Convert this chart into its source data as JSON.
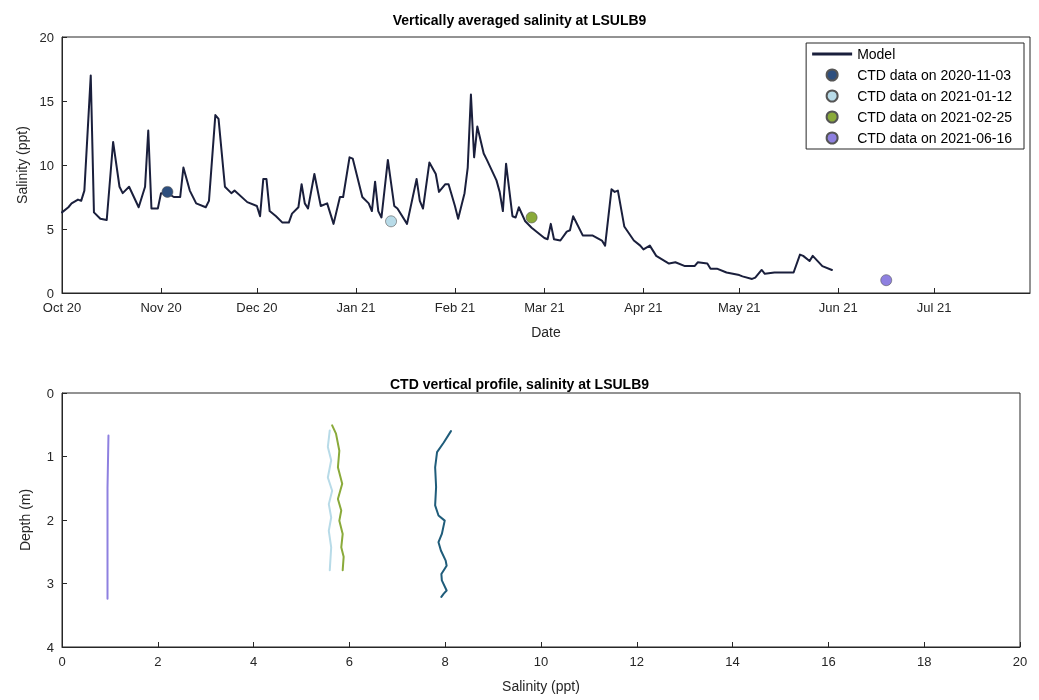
{
  "chart_data": [
    {
      "type": "line",
      "title": "Vertically averaged salinity at LSULB9",
      "xlabel": "Date",
      "ylabel": "Salinity (ppt)",
      "legend": "top right",
      "xlim": [
        "2020-10-01",
        "2021-07-31"
      ],
      "xticks": [
        {
          "value": "2020-10-01",
          "label": "Oct 20"
        },
        {
          "value": "2020-11-01",
          "label": "Nov 20"
        },
        {
          "value": "2020-12-01",
          "label": "Dec 20"
        },
        {
          "value": "2021-01-01",
          "label": "Jan 21"
        },
        {
          "value": "2021-02-01",
          "label": "Feb 21"
        },
        {
          "value": "2021-03-01",
          "label": "Mar 21"
        },
        {
          "value": "2021-04-01",
          "label": "Apr 21"
        },
        {
          "value": "2021-05-01",
          "label": "May 21"
        },
        {
          "value": "2021-06-01",
          "label": "Jun 21"
        },
        {
          "value": "2021-07-01",
          "label": "Jul 21"
        }
      ],
      "ylim": [
        0,
        20
      ],
      "yticks": [
        0,
        5,
        10,
        15,
        20
      ],
      "series": [
        {
          "name": "Model",
          "marker": "none",
          "color": "#1a1f3c",
          "x": [
            "2020-10-01",
            "2020-10-03",
            "2020-10-04",
            "2020-10-06",
            "2020-10-07",
            "2020-10-08",
            "2020-10-10",
            "2020-10-11",
            "2020-10-13",
            "2020-10-15",
            "2020-10-17",
            "2020-10-19",
            "2020-10-20",
            "2020-10-22",
            "2020-10-25",
            "2020-10-27",
            "2020-10-28",
            "2020-10-29",
            "2020-10-31",
            "2020-11-01",
            "2020-11-03",
            "2020-11-05",
            "2020-11-07",
            "2020-11-08",
            "2020-11-10",
            "2020-11-12",
            "2020-11-15",
            "2020-11-16",
            "2020-11-18",
            "2020-11-19",
            "2020-11-21",
            "2020-11-23",
            "2020-11-24",
            "2020-11-28",
            "2020-12-01",
            "2020-12-02",
            "2020-12-03",
            "2020-12-04",
            "2020-12-05",
            "2020-12-07",
            "2020-12-09",
            "2020-12-11",
            "2020-12-12",
            "2020-12-14",
            "2020-12-15",
            "2020-12-16",
            "2020-12-17",
            "2020-12-19",
            "2020-12-21",
            "2020-12-23",
            "2020-12-25",
            "2020-12-27",
            "2020-12-28",
            "2020-12-30",
            "2020-12-31",
            "2021-01-03",
            "2021-01-05",
            "2021-01-06",
            "2021-01-07",
            "2021-01-08",
            "2021-01-09",
            "2021-01-11",
            "2021-01-13",
            "2021-01-14",
            "2021-01-17",
            "2021-01-20",
            "2021-01-21",
            "2021-01-22",
            "2021-01-24",
            "2021-01-26",
            "2021-01-27",
            "2021-01-29",
            "2021-01-30",
            "2021-02-01",
            "2021-02-02",
            "2021-02-04",
            "2021-02-05",
            "2021-02-06",
            "2021-02-07",
            "2021-02-08",
            "2021-02-10",
            "2021-02-11",
            "2021-02-14",
            "2021-02-15",
            "2021-02-16",
            "2021-02-17",
            "2021-02-19",
            "2021-02-20",
            "2021-02-21",
            "2021-02-23",
            "2021-02-25",
            "2021-03-01",
            "2021-03-02",
            "2021-03-03",
            "2021-03-04",
            "2021-03-06",
            "2021-03-08",
            "2021-03-09",
            "2021-03-10",
            "2021-03-13",
            "2021-03-16",
            "2021-03-19",
            "2021-03-20",
            "2021-03-22",
            "2021-03-23",
            "2021-03-24",
            "2021-03-26",
            "2021-03-29",
            "2021-03-31",
            "2021-04-01",
            "2021-04-03",
            "2021-04-05",
            "2021-04-09",
            "2021-04-11",
            "2021-04-14",
            "2021-04-17",
            "2021-04-18",
            "2021-04-21",
            "2021-04-22",
            "2021-04-24",
            "2021-04-27",
            "2021-05-01",
            "2021-05-02",
            "2021-05-05",
            "2021-05-06",
            "2021-05-08",
            "2021-05-09",
            "2021-05-12",
            "2021-05-15",
            "2021-05-18",
            "2021-05-20",
            "2021-05-21",
            "2021-05-23",
            "2021-05-24",
            "2021-05-27",
            "2021-05-30"
          ],
          "values": [
            6.3,
            6.7,
            7.0,
            7.3,
            7.2,
            8.0,
            17.0,
            6.3,
            5.8,
            5.7,
            11.8,
            8.3,
            7.8,
            8.3,
            6.7,
            8.3,
            12.7,
            6.6,
            6.6,
            7.8,
            7.8,
            7.5,
            7.5,
            9.8,
            8.0,
            7.0,
            6.7,
            7.2,
            13.9,
            13.6,
            8.3,
            7.8,
            8.0,
            7.1,
            6.8,
            6.0,
            8.9,
            8.9,
            6.4,
            6.0,
            5.5,
            5.5,
            6.2,
            6.7,
            8.5,
            7.0,
            6.6,
            9.3,
            6.8,
            7.0,
            5.4,
            7.5,
            7.5,
            10.6,
            10.5,
            7.5,
            7.0,
            6.4,
            8.7,
            6.4,
            5.9,
            10.4,
            6.8,
            6.6,
            5.4,
            8.9,
            7.2,
            6.6,
            10.2,
            9.3,
            7.9,
            8.5,
            8.5,
            6.8,
            5.8,
            7.8,
            9.8,
            15.5,
            10.6,
            13.0,
            10.9,
            10.4,
            8.8,
            7.9,
            6.4,
            10.1,
            6.0,
            5.9,
            6.7,
            5.6,
            5.1,
            4.3,
            4.2,
            5.4,
            4.2,
            4.1,
            4.8,
            4.9,
            6.0,
            4.5,
            4.5,
            4.1,
            3.7,
            8.1,
            7.9,
            8.0,
            5.2,
            4.1,
            3.7,
            3.4,
            3.7,
            2.9,
            2.3,
            2.4,
            2.1,
            2.1,
            2.4,
            2.3,
            1.9,
            1.9,
            1.6,
            1.4,
            1.3,
            1.1,
            1.2,
            1.8,
            1.5,
            1.6,
            1.6,
            1.6,
            3.0,
            2.9,
            2.5,
            2.9,
            2.1,
            1.8
          ]
        },
        {
          "name": "CTD data on 2020-11-03",
          "type": "scatter",
          "marker": "circle",
          "color": "#2e4f7e",
          "x": [
            "2020-11-03"
          ],
          "values": [
            7.9
          ]
        },
        {
          "name": "CTD data on 2021-01-12",
          "type": "scatter",
          "marker": "circle",
          "color": "#b8dbe8",
          "x": [
            "2021-01-12"
          ],
          "values": [
            5.6
          ]
        },
        {
          "name": "CTD data on 2021-02-25",
          "type": "scatter",
          "marker": "circle",
          "color": "#8aaa3a",
          "x": [
            "2021-02-25"
          ],
          "values": [
            5.9
          ]
        },
        {
          "name": "CTD data on 2021-06-16",
          "type": "scatter",
          "marker": "circle",
          "color": "#8e80e0",
          "x": [
            "2021-06-16"
          ],
          "values": [
            1.0
          ]
        }
      ]
    },
    {
      "type": "line",
      "title": "CTD vertical profile, salinity at LSULB9",
      "xlabel": "Salinity (ppt)",
      "ylabel": "Depth (m)",
      "xlim": [
        0,
        20
      ],
      "xticks": [
        0,
        2,
        4,
        6,
        8,
        10,
        12,
        14,
        16,
        18,
        20
      ],
      "ylim": [
        4,
        0
      ],
      "yticks": [
        0,
        1,
        2,
        3,
        4
      ],
      "series": [
        {
          "color": "#1f5c7a",
          "marker": "none",
          "x": [
            8.12,
            7.97,
            7.83,
            7.79,
            7.81,
            7.79,
            7.86,
            7.99,
            7.93,
            7.86,
            7.91,
            8.01,
            8.03,
            7.92,
            7.93,
            8.03,
            7.97,
            7.92
          ],
          "values": [
            0.6,
            0.78,
            0.93,
            1.17,
            1.48,
            1.77,
            1.93,
            2.01,
            2.22,
            2.35,
            2.48,
            2.64,
            2.72,
            2.85,
            2.95,
            3.11,
            3.16,
            3.21
          ]
        },
        {
          "color": "#b8dbe8",
          "marker": "none",
          "x": [
            5.59,
            5.55,
            5.62,
            5.55,
            5.64,
            5.57,
            5.62,
            5.57,
            5.62,
            5.59
          ],
          "values": [
            0.59,
            0.85,
            1.06,
            1.33,
            1.54,
            1.75,
            1.96,
            2.17,
            2.43,
            2.79
          ]
        },
        {
          "color": "#8aaa3a",
          "marker": "none",
          "x": [
            5.64,
            5.72,
            5.79,
            5.76,
            5.85,
            5.76,
            5.83,
            5.79,
            5.86,
            5.83,
            5.88,
            5.86
          ],
          "values": [
            0.51,
            0.64,
            0.91,
            1.17,
            1.43,
            1.67,
            1.85,
            2.01,
            2.22,
            2.43,
            2.58,
            2.79
          ]
        },
        {
          "color": "#8e80e0",
          "marker": "none",
          "x": [
            0.97,
            0.95,
            0.95,
            0.95
          ],
          "values": [
            0.67,
            1.5,
            2.5,
            3.24
          ]
        }
      ]
    }
  ]
}
